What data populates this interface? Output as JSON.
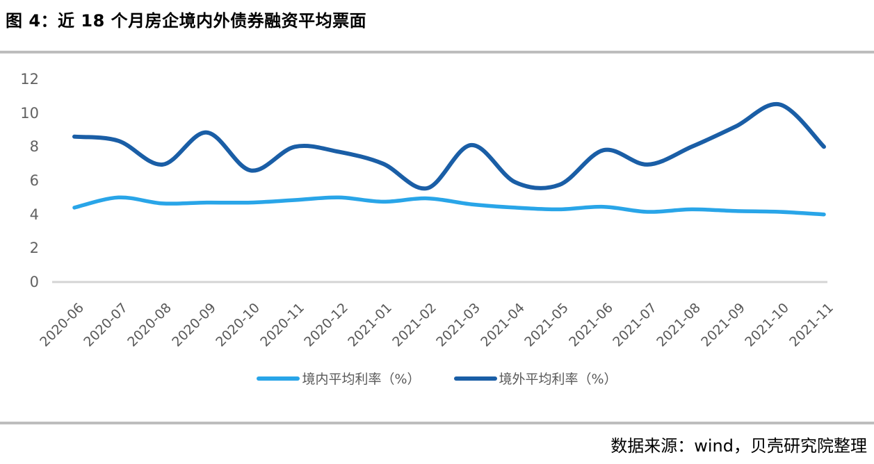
{
  "source": "数据来源：wind，贝壳研究院整理",
  "colors": {
    "domestic_line": "#29a5e8",
    "overseas_line": "#1a5ea6",
    "axis_line": "#d4d4d4",
    "separator": "#bdbdbd",
    "tick_text": "#616161",
    "legend_text": "#595959"
  },
  "chart_data": {
    "type": "line",
    "title": "图 4：近 18 个月房企境内外债券融资平均票面",
    "categories": [
      "2020-06",
      "2020-07",
      "2020-08",
      "2020-09",
      "2020-10",
      "2020-11",
      "2020-12",
      "2021-01",
      "2021-02",
      "2021-03",
      "2021-04",
      "2021-05",
      "2021-06",
      "2021-07",
      "2021-08",
      "2021-09",
      "2021-10",
      "2021-11"
    ],
    "series": [
      {
        "name": "境内平均利率（%）",
        "color": "#29a5e8",
        "values": [
          4.4,
          5.0,
          4.65,
          4.7,
          4.7,
          4.85,
          5.0,
          4.75,
          4.95,
          4.6,
          4.4,
          4.3,
          4.45,
          4.15,
          4.3,
          4.2,
          4.15,
          4.0
        ]
      },
      {
        "name": "境外平均利率（%）",
        "color": "#1a5ea6",
        "values": [
          8.6,
          8.35,
          6.95,
          8.85,
          6.6,
          8.0,
          7.7,
          7.0,
          5.55,
          8.1,
          5.9,
          5.75,
          7.8,
          6.95,
          8.0,
          9.2,
          10.5,
          8.0
        ]
      }
    ],
    "xlabel": "",
    "ylabel": "",
    "ylim": [
      0,
      12
    ],
    "yticks": [
      0,
      2,
      4,
      6,
      8,
      10,
      12
    ],
    "grid": false,
    "legend_position": "bottom",
    "smooth": true
  }
}
